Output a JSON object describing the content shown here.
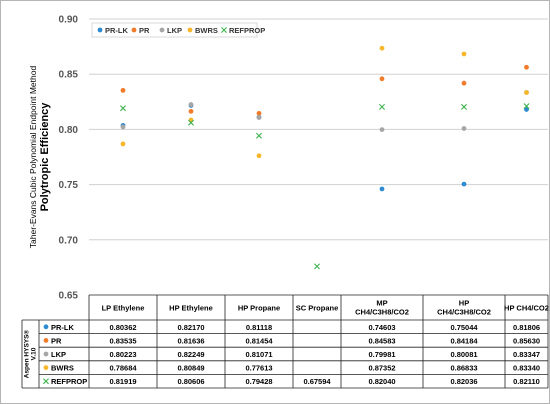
{
  "colors": {
    "PR-LK": "#2e8bd1",
    "PR": "#f07b2a",
    "LKP": "#a6a6a6",
    "BWRS": "#f7b72a",
    "REFPROP": "#3fb34f",
    "grid": "#d0d0d0",
    "axis_text": "#555555"
  },
  "chart_data": {
    "type": "scatter",
    "ylabel_line1": "Taher-Evans Cubic Polynomial Endpoint Method",
    "ylabel_line2": "Polytropic Efficiency",
    "ylim": [
      0.65,
      0.9
    ],
    "yticks": [
      "0.65",
      "0.70",
      "0.75",
      "0.80",
      "0.85",
      "0.90"
    ],
    "grid": true,
    "legend_position": "top-left",
    "categories": [
      "LP Ethylene",
      "HP Ethylene",
      "HP Propane",
      "SC Propane",
      "MP CH4/C3H8/CO2",
      "HP CH4/C3H8/CO2",
      "HP CH4/CO2"
    ],
    "category_lines": [
      [
        "LP Ethylene"
      ],
      [
        "HP Ethylene"
      ],
      [
        "HP Propane"
      ],
      [
        "SC Propane"
      ],
      [
        "MP",
        "CH4/C3H8/CO2"
      ],
      [
        "HP",
        "CH4/C3H8/CO2"
      ],
      [
        "HP CH4/CO2"
      ]
    ],
    "series": [
      {
        "name": "PR-LK",
        "marker": "dot",
        "values": [
          0.80362,
          0.8217,
          0.81118,
          null,
          0.74603,
          0.75044,
          0.81806
        ],
        "labels": [
          "0.80362",
          "0.82170",
          "0.81118",
          "",
          "0.74603",
          "0.75044",
          "0.81806"
        ]
      },
      {
        "name": "PR",
        "marker": "dot",
        "values": [
          0.83535,
          0.81636,
          0.81454,
          null,
          0.84583,
          0.84184,
          0.8563
        ],
        "labels": [
          "0.83535",
          "0.81636",
          "0.81454",
          "",
          "0.84583",
          "0.84184",
          "0.85630"
        ]
      },
      {
        "name": "LKP",
        "marker": "dot",
        "values": [
          0.80223,
          0.82249,
          0.81071,
          null,
          0.79981,
          0.80081,
          0.83347
        ],
        "labels": [
          "0.80223",
          "0.82249",
          "0.81071",
          "",
          "0.79981",
          "0.80081",
          "0.83347"
        ]
      },
      {
        "name": "BWRS",
        "marker": "dot",
        "values": [
          0.78684,
          0.80849,
          0.77613,
          null,
          0.87352,
          0.86833,
          0.8334
        ],
        "labels": [
          "0.78684",
          "0.80849",
          "0.77613",
          "",
          "0.87352",
          "0.86833",
          "0.83340"
        ]
      },
      {
        "name": "REFPROP",
        "marker": "x",
        "values": [
          0.81919,
          0.80606,
          0.79428,
          0.67594,
          0.8204,
          0.82036,
          0.8211
        ],
        "labels": [
          "0.81919",
          "0.80606",
          "0.79428",
          "0.67594",
          "0.82040",
          "0.82036",
          "0.82110"
        ]
      }
    ],
    "table_side_label": [
      "Aspen HYSYS®",
      "V.10"
    ]
  }
}
